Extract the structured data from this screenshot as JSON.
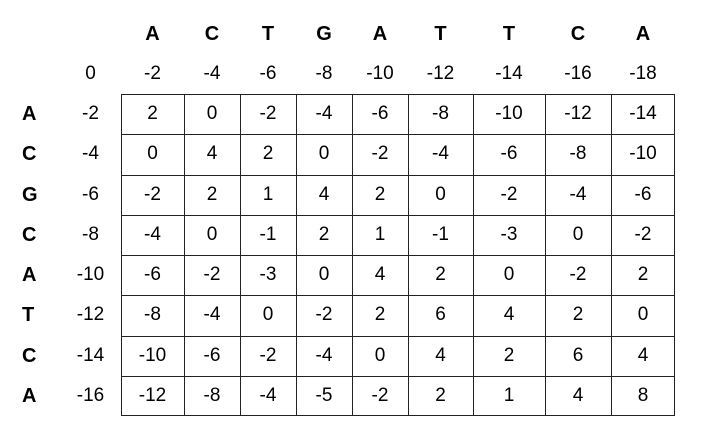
{
  "top_sequence": [
    "A",
    "C",
    "T",
    "G",
    "A",
    "T",
    "T",
    "C",
    "A"
  ],
  "side_sequence": [
    "A",
    "C",
    "G",
    "C",
    "A",
    "T",
    "C",
    "A"
  ],
  "top_gap_scores": [
    "0",
    "-2",
    "-4",
    "-6",
    "-8",
    "-10",
    "-12",
    "-14",
    "-16",
    "-18"
  ],
  "side_gap_scores": [
    "-2",
    "-4",
    "-6",
    "-8",
    "-10",
    "-12",
    "-14",
    "-16"
  ],
  "matrix": [
    [
      "2",
      "0",
      "-2",
      "-4",
      "-6",
      "-8",
      "-10",
      "-12",
      "-14"
    ],
    [
      "0",
      "4",
      "2",
      "0",
      "-2",
      "-4",
      "-6",
      "-8",
      "-10"
    ],
    [
      "-2",
      "2",
      "1",
      "4",
      "2",
      "0",
      "-2",
      "-4",
      "-6"
    ],
    [
      "-4",
      "0",
      "-1",
      "2",
      "1",
      "-1",
      "-3",
      "0",
      "-2"
    ],
    [
      "-6",
      "-2",
      "-3",
      "0",
      "4",
      "2",
      "0",
      "-2",
      "2"
    ],
    [
      "-8",
      "-4",
      "0",
      "-2",
      "2",
      "6",
      "4",
      "2",
      "0"
    ],
    [
      "-10",
      "-6",
      "-2",
      "-4",
      "0",
      "4",
      "2",
      "6",
      "4"
    ],
    [
      "-12",
      "-8",
      "-4",
      "-5",
      "-2",
      "2",
      "1",
      "4",
      "8"
    ]
  ]
}
